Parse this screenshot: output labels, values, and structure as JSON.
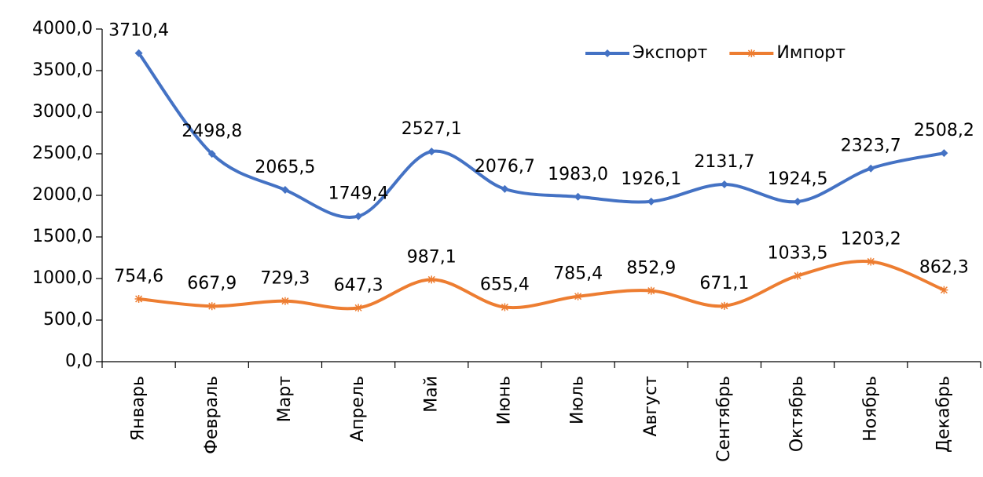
{
  "chart_data": {
    "type": "line",
    "categories": [
      "Январь",
      "Февраль",
      "Март",
      "Апрель",
      "Май",
      "Июнь",
      "Июль",
      "Август",
      "Сентябрь",
      "Октябрь",
      "Ноябрь",
      "Декабрь"
    ],
    "series": [
      {
        "name": "Экспорт",
        "color": "#4472c4",
        "marker": "diamond",
        "values": [
          3710.4,
          2498.8,
          2065.5,
          1749.4,
          2527.1,
          2076.7,
          1983.0,
          1926.1,
          2131.7,
          1924.5,
          2323.7,
          2508.2
        ],
        "value_labels": [
          "3710,4",
          "2498,8",
          "2065,5",
          "1749,4",
          "2527,1",
          "2076,7",
          "1983,0",
          "1926,1",
          "2131,7",
          "1924,5",
          "2323,7",
          "2508,2"
        ]
      },
      {
        "name": "Импорт",
        "color": "#ed7d31",
        "marker": "star",
        "values": [
          754.6,
          667.9,
          729.3,
          647.3,
          987.1,
          655.4,
          785.4,
          852.9,
          671.1,
          1033.5,
          1203.2,
          862.3
        ],
        "value_labels": [
          "754,6",
          "667,9",
          "729,3",
          "647,3",
          "987,1",
          "655,4",
          "785,4",
          "852,9",
          "671,1",
          "1033,5",
          "1203,2",
          "862,3"
        ]
      }
    ],
    "ylim": [
      0,
      4000
    ],
    "yticks": [
      {
        "value": 0,
        "label": "0,0"
      },
      {
        "value": 500,
        "label": "500,0"
      },
      {
        "value": 1000,
        "label": "1000,0"
      },
      {
        "value": 1500,
        "label": "1500,0"
      },
      {
        "value": 2000,
        "label": "2000,0"
      },
      {
        "value": 2500,
        "label": "2500,0"
      },
      {
        "value": 3000,
        "label": "3000,0"
      },
      {
        "value": 3500,
        "label": "3500,0"
      },
      {
        "value": 4000,
        "label": "4000,0"
      }
    ],
    "legend": "top-right",
    "grid": false,
    "smooth": true
  }
}
